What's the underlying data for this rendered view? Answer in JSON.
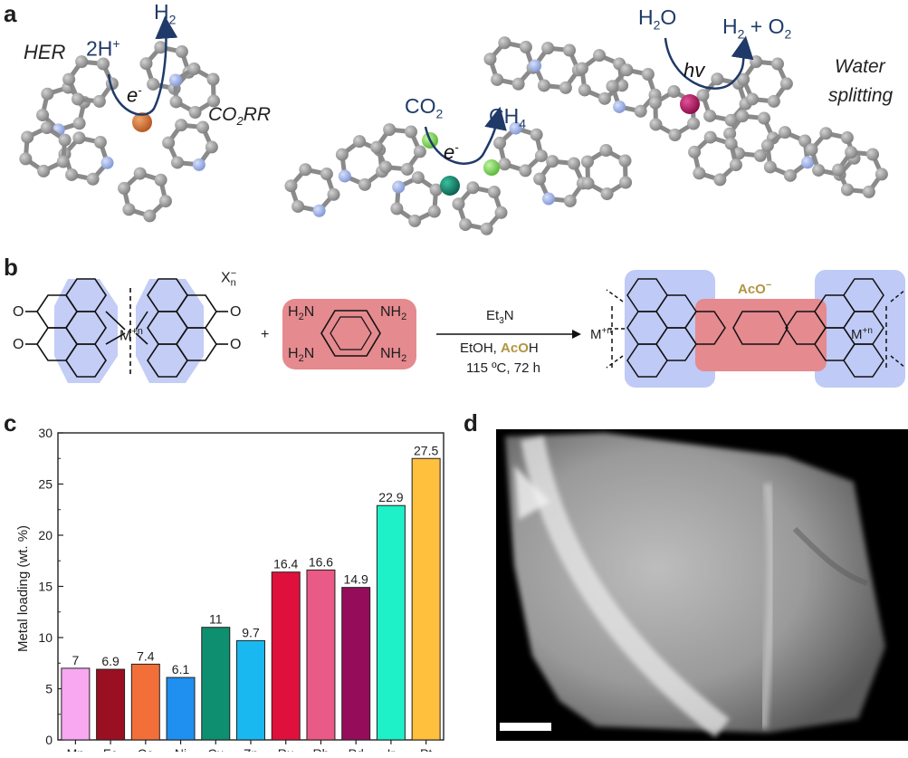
{
  "panels": {
    "a": "a",
    "b": "b",
    "c": "c",
    "d": "d"
  },
  "panel_a": {
    "her": {
      "title": "HER",
      "reactant": "2H",
      "reactant_sup": "+",
      "product": "H",
      "product_sub": "2",
      "electron": "e",
      "electron_sup": "-"
    },
    "co2rr": {
      "title": "CO",
      "title_sub": "2",
      "title_tail": "RR",
      "reactant": "CO",
      "reactant_sub": "2",
      "product": "CH",
      "product_sub": "4",
      "electron": "e",
      "electron_sup": "-"
    },
    "water": {
      "title_line1": "Water",
      "title_line2": "splitting",
      "reactant": "H",
      "reactant_sub": "2",
      "reactant_tail": "O",
      "product": "H",
      "product_sub": "2",
      "product_mid": " + O",
      "product_sub2": "2",
      "light": "hv"
    },
    "colors": {
      "carbon": "#8f8f8f",
      "nitrogen": "#9aaee0",
      "chlorine": "#7ed957",
      "fe_co_metal": "#c8642a",
      "ru_metal": "#137a66",
      "ir_metal": "#b0145f",
      "arrow": "#1f3a68"
    }
  },
  "panel_b": {
    "counter_ion": "X",
    "counter_ion_sub": "n",
    "counter_ion_sup": "−",
    "metal": "M",
    "metal_sup": "+n",
    "oxygen": "O",
    "plus": "+",
    "amine": "NH",
    "amine_sub": "2",
    "amine_pre": "H",
    "amine_pre_sub": "2",
    "amine_pre_tail": "N",
    "reagent_top": "Et",
    "reagent_top_sub": "3",
    "reagent_top_tail": "N",
    "reagent_mid_a": "EtOH, ",
    "reagent_mid_b": "AcO",
    "reagent_mid_c": "H",
    "reagent_bottom": "115 ºC, 72 h",
    "acetate": "AcO",
    "acetate_sup": "−",
    "n_label": "N",
    "colors": {
      "blue_highlight": "#b8c4f5",
      "red_highlight": "#e58a8f",
      "acetate": "#b19543"
    }
  },
  "chart_data": {
    "type": "bar",
    "categories": [
      "Mn",
      "Fe",
      "Co",
      "Ni",
      "Cu",
      "Zn",
      "Ru",
      "Rh",
      "Pd",
      "Ir",
      "Pt"
    ],
    "values": [
      7,
      6.9,
      7.4,
      6.1,
      11,
      9.7,
      16.4,
      16.6,
      14.9,
      22.9,
      27.5
    ],
    "data_labels": [
      "7",
      "6.9",
      "7.4",
      "6.1",
      "11",
      "9.7",
      "16.4",
      "16.6",
      "14.9",
      "22.9",
      "27.5"
    ],
    "colors": [
      "#f7a8f0",
      "#9b0f23",
      "#f36f3a",
      "#1f8ff0",
      "#0e8f6f",
      "#1ab8f0",
      "#e0103d",
      "#ea5a86",
      "#950c5a",
      "#1ef0c8",
      "#ffc03d"
    ],
    "ylabel": "Metal loading (wt. %)",
    "xlabel": "",
    "ylim": [
      0,
      30
    ],
    "yticks": [
      "0",
      "5",
      "10",
      "15",
      "20",
      "25",
      "30"
    ],
    "grid": false
  }
}
